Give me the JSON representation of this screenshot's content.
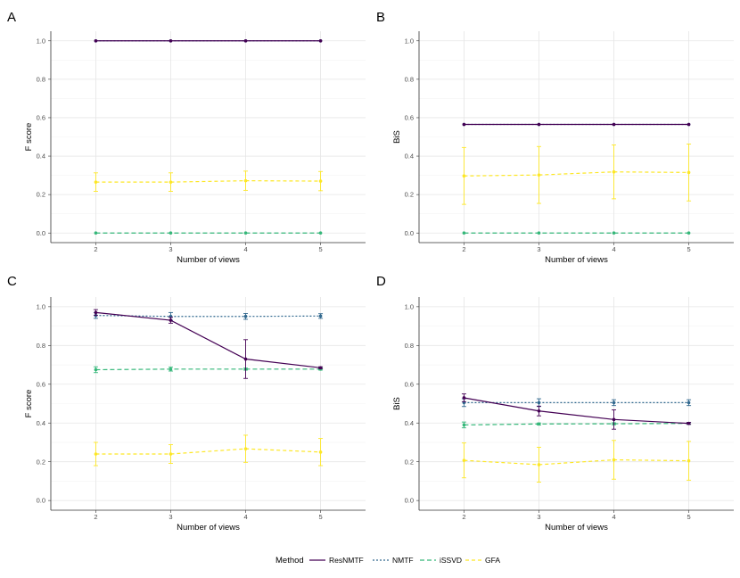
{
  "series_styles": [
    {
      "name": "ResNMTF",
      "color": "#440154",
      "dash": ""
    },
    {
      "name": "NMTF",
      "color": "#31688E",
      "dash": "2,2"
    },
    {
      "name": "iSSVD",
      "color": "#35B779",
      "dash": "5,3"
    },
    {
      "name": "GFA",
      "color": "#FDE725",
      "dash": "4,3"
    }
  ],
  "legend": {
    "title": "Method",
    "items": [
      "ResNMTF",
      "NMTF",
      "iSSVD",
      "GFA"
    ]
  },
  "chart_data": [
    {
      "panel": "A",
      "type": "line",
      "x": [
        2,
        3,
        4,
        5
      ],
      "xlabel": "Number of views",
      "ylabel": "F score",
      "ylim": [
        0,
        1
      ],
      "yticks": [
        "0.0",
        "0.2",
        "0.4",
        "0.6",
        "0.8",
        "1.0"
      ],
      "series": [
        {
          "name": "ResNMTF",
          "values": [
            1.0,
            1.0,
            1.0,
            1.0
          ],
          "err": [
            0,
            0,
            0,
            0
          ]
        },
        {
          "name": "NMTF",
          "values": [
            1.0,
            1.0,
            1.0,
            1.0
          ],
          "err": [
            0,
            0,
            0,
            0
          ]
        },
        {
          "name": "iSSVD",
          "values": [
            0.0,
            0.0,
            0.0,
            0.0
          ],
          "err": [
            0,
            0,
            0,
            0
          ]
        },
        {
          "name": "GFA",
          "values": [
            0.265,
            0.265,
            0.272,
            0.27
          ],
          "err": [
            0.048,
            0.048,
            0.05,
            0.05
          ]
        }
      ]
    },
    {
      "panel": "B",
      "type": "line",
      "x": [
        2,
        3,
        4,
        5
      ],
      "xlabel": "Number of views",
      "ylabel": "BiS",
      "ylim": [
        0,
        1
      ],
      "yticks": [
        "0.0",
        "0.2",
        "0.4",
        "0.6",
        "0.8",
        "1.0"
      ],
      "series": [
        {
          "name": "ResNMTF",
          "values": [
            0.565,
            0.565,
            0.565,
            0.565
          ],
          "err": [
            0,
            0,
            0,
            0
          ]
        },
        {
          "name": "NMTF",
          "values": [
            0.565,
            0.565,
            0.565,
            0.565
          ],
          "err": [
            0,
            0,
            0,
            0
          ]
        },
        {
          "name": "iSSVD",
          "values": [
            0.0,
            0.0,
            0.0,
            0.0
          ],
          "err": [
            0,
            0,
            0,
            0
          ]
        },
        {
          "name": "GFA",
          "values": [
            0.297,
            0.302,
            0.318,
            0.315
          ],
          "err": [
            0.148,
            0.148,
            0.14,
            0.148
          ]
        }
      ]
    },
    {
      "panel": "C",
      "type": "line",
      "x": [
        2,
        3,
        4,
        5
      ],
      "xlabel": "Number of views",
      "ylabel": "F score",
      "ylim": [
        0,
        1
      ],
      "yticks": [
        "0.0",
        "0.2",
        "0.4",
        "0.6",
        "0.8",
        "1.0"
      ],
      "series": [
        {
          "name": "ResNMTF",
          "values": [
            0.97,
            0.93,
            0.73,
            0.685
          ],
          "err": [
            0.015,
            0.015,
            0.1,
            0.005
          ]
        },
        {
          "name": "NMTF",
          "values": [
            0.955,
            0.95,
            0.95,
            0.952
          ],
          "err": [
            0.015,
            0.02,
            0.015,
            0.012
          ]
        },
        {
          "name": "iSSVD",
          "values": [
            0.675,
            0.678,
            0.678,
            0.678
          ],
          "err": [
            0.015,
            0.01,
            0.005,
            0.005
          ]
        },
        {
          "name": "GFA",
          "values": [
            0.24,
            0.24,
            0.267,
            0.25
          ],
          "err": [
            0.06,
            0.048,
            0.07,
            0.07
          ]
        }
      ]
    },
    {
      "panel": "D",
      "type": "line",
      "x": [
        2,
        3,
        4,
        5
      ],
      "xlabel": "Number of views",
      "ylabel": "BiS",
      "ylim": [
        0,
        1
      ],
      "yticks": [
        "0.0",
        "0.2",
        "0.4",
        "0.6",
        "0.8",
        "1.0"
      ],
      "series": [
        {
          "name": "ResNMTF",
          "values": [
            0.53,
            0.462,
            0.418,
            0.398
          ],
          "err": [
            0.02,
            0.025,
            0.05,
            0.005
          ]
        },
        {
          "name": "NMTF",
          "values": [
            0.505,
            0.505,
            0.505,
            0.505
          ],
          "err": [
            0.02,
            0.02,
            0.015,
            0.015
          ]
        },
        {
          "name": "iSSVD",
          "values": [
            0.39,
            0.395,
            0.396,
            0.398
          ],
          "err": [
            0.015,
            0.005,
            0.005,
            0.005
          ]
        },
        {
          "name": "GFA",
          "values": [
            0.207,
            0.185,
            0.21,
            0.205
          ],
          "err": [
            0.09,
            0.09,
            0.1,
            0.1
          ]
        }
      ]
    }
  ]
}
